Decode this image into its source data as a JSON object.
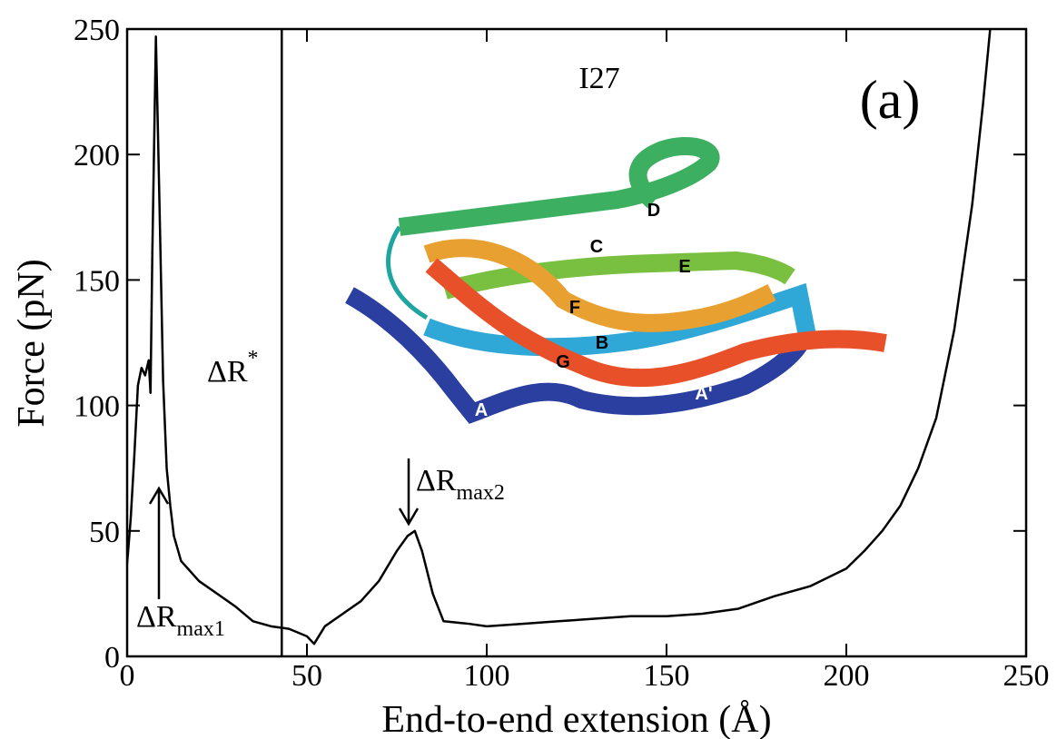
{
  "chart_data": {
    "type": "line",
    "title": "I27",
    "panel_label": "(a)",
    "xlabel": "End-to-end extension (Å)",
    "ylabel": "Force (pN)",
    "xlim": [
      0,
      250
    ],
    "ylim": [
      0,
      250
    ],
    "xticks": [
      0,
      50,
      100,
      150,
      200,
      250
    ],
    "yticks": [
      0,
      50,
      100,
      150,
      200,
      250
    ],
    "vline": 43,
    "series": [
      {
        "color": "#000000",
        "x": [
          0,
          1,
          2,
          3,
          4,
          5,
          6,
          6.5,
          7,
          8,
          9,
          10,
          11,
          12,
          13,
          15,
          20,
          25,
          30,
          35,
          40,
          45,
          50,
          52,
          55,
          60,
          65,
          70,
          75,
          78,
          80,
          82,
          85,
          88,
          95,
          100,
          110,
          120,
          130,
          140,
          150,
          160,
          170,
          180,
          190,
          200,
          205,
          210,
          215,
          220,
          225,
          230,
          235,
          238,
          240
        ],
        "values": [
          37,
          55,
          80,
          108,
          115,
          112,
          118,
          105,
          160,
          247,
          180,
          110,
          75,
          60,
          48,
          38,
          30,
          25,
          20,
          14,
          12,
          11,
          8,
          5,
          12,
          17,
          22,
          30,
          42,
          48,
          50,
          42,
          25,
          14,
          13,
          12,
          13,
          14,
          15,
          16,
          16,
          17,
          19,
          24,
          28,
          35,
          42,
          50,
          60,
          75,
          95,
          130,
          180,
          220,
          250
        ]
      }
    ],
    "annotations": [
      {
        "text": "ΔR",
        "sup": "*"
      },
      {
        "text": "ΔR",
        "sub": "max1"
      },
      {
        "text": "ΔR",
        "sub": "max2"
      }
    ],
    "inset_labels": [
      "A",
      "A'",
      "B",
      "C",
      "D",
      "E",
      "F",
      "G"
    ]
  }
}
